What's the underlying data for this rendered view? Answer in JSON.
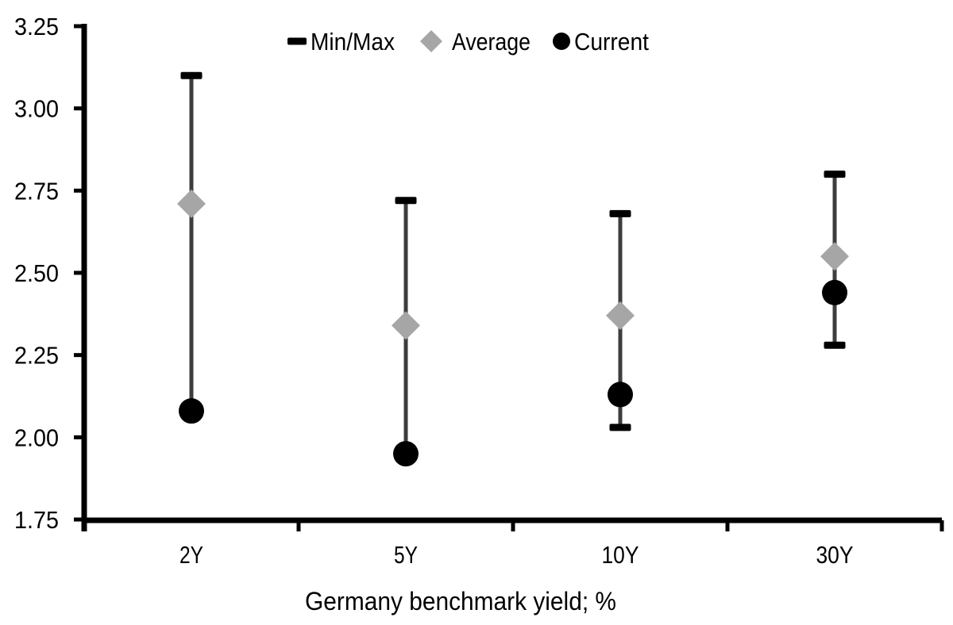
{
  "chart_data": {
    "type": "scatter",
    "subtype": "minmax-range-with-average-and-current",
    "categories": [
      "2Y",
      "5Y",
      "10Y",
      "30Y"
    ],
    "series": [
      {
        "name": "Min/Max",
        "role": "range",
        "max": [
          3.1,
          2.72,
          2.68,
          2.8
        ],
        "min": [
          2.08,
          1.95,
          2.03,
          2.28
        ]
      },
      {
        "name": "Average",
        "role": "average",
        "values": [
          2.71,
          2.34,
          2.37,
          2.55
        ]
      },
      {
        "name": "Current",
        "role": "current",
        "values": [
          2.08,
          1.95,
          2.13,
          2.44
        ]
      }
    ],
    "title": "",
    "xlabel": "Germany benchmark yield; %",
    "ylabel": "",
    "ylim": [
      1.75,
      3.25
    ],
    "yticks": [
      "1.75",
      "2.00",
      "2.25",
      "2.50",
      "2.75",
      "3.00",
      "3.25"
    ],
    "grid": false,
    "legend_position": "top-center",
    "legend": [
      {
        "marker": "dash",
        "label": "Min/Max"
      },
      {
        "marker": "diamond",
        "label": "Average"
      },
      {
        "marker": "circle",
        "label": "Current"
      }
    ],
    "colors": {
      "axis": "#000000",
      "text": "#000000",
      "range_line": "#3d3d3d",
      "minmax_cap": "#000000",
      "average_diamond": "#a6a6a6",
      "current_dot": "#000000",
      "background": "#ffffff"
    }
  }
}
